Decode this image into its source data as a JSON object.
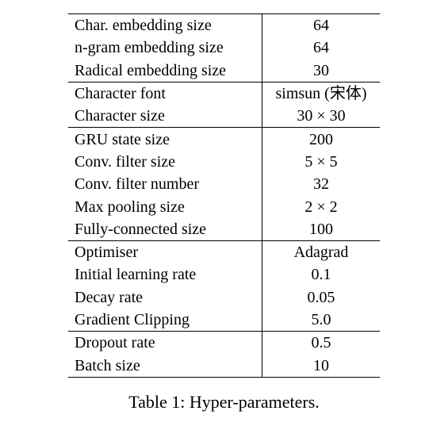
{
  "table": {
    "groups": [
      {
        "rows": [
          {
            "name": "Char. embedding size",
            "value": "64"
          },
          {
            "name": "n-gram embedding size",
            "value": "64"
          },
          {
            "name": "Radical embedding size",
            "value": "30"
          }
        ]
      },
      {
        "rows": [
          {
            "name": "Character font",
            "value": "simsun (宋体)"
          },
          {
            "name": "Character size",
            "value": "30 × 30"
          }
        ]
      },
      {
        "rows": [
          {
            "name": "GRU state size",
            "value": "200"
          },
          {
            "name": "Conv. filter size",
            "value": "5 × 5"
          },
          {
            "name": "Conv. filter number",
            "value": "32"
          },
          {
            "name": "Max pooling size",
            "value": "2 × 2"
          },
          {
            "name": "Fully-connected size",
            "value": "100"
          }
        ]
      },
      {
        "rows": [
          {
            "name": "Optimiser",
            "value": "Adagrad"
          },
          {
            "name": "Initial learning rate",
            "value": "0.1"
          },
          {
            "name": "Decay rate",
            "value": "0.05"
          },
          {
            "name": "Gradient Clipping",
            "value": "5.0"
          }
        ]
      },
      {
        "rows": [
          {
            "name": "Dropout rate",
            "value": "0.5"
          },
          {
            "name": "Batch size",
            "value": "10"
          }
        ]
      }
    ]
  },
  "caption": "Table 1: Hyper-parameters."
}
